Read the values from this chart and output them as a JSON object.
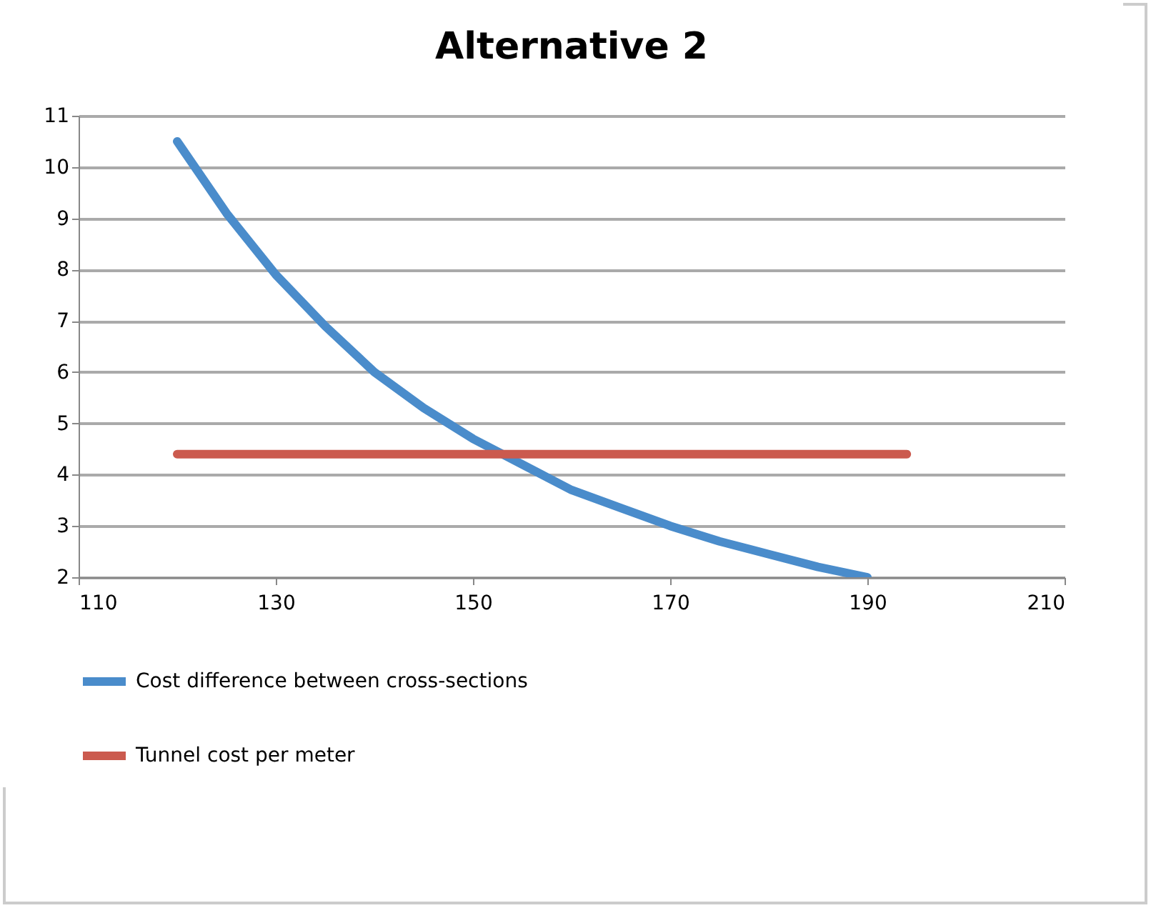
{
  "chart_data": {
    "type": "line",
    "title": "Alternative 2",
    "series": [
      {
        "name": "Cost difference between cross-sections",
        "color": "#4a8ccb",
        "x": [
          120,
          125,
          130,
          135,
          140,
          145,
          150,
          155,
          160,
          165,
          170,
          175,
          180,
          185,
          190
        ],
        "values": [
          10.5,
          9.1,
          7.9,
          6.9,
          6.0,
          5.3,
          4.7,
          4.2,
          3.7,
          3.35,
          3.0,
          2.7,
          2.45,
          2.2,
          2.0
        ]
      },
      {
        "name": "Tunnel cost per meter",
        "color": "#cb5a4e",
        "x": [
          120,
          194
        ],
        "values": [
          4.4,
          4.4
        ]
      }
    ],
    "xlim": [
      110,
      210
    ],
    "xticks": [
      110,
      130,
      150,
      170,
      190,
      210
    ],
    "ylim": [
      2,
      11
    ],
    "yticks": [
      2,
      3,
      4,
      5,
      6,
      7,
      8,
      9,
      10,
      11
    ],
    "grid": "y",
    "legend": "bottom",
    "line_style": "solid"
  }
}
